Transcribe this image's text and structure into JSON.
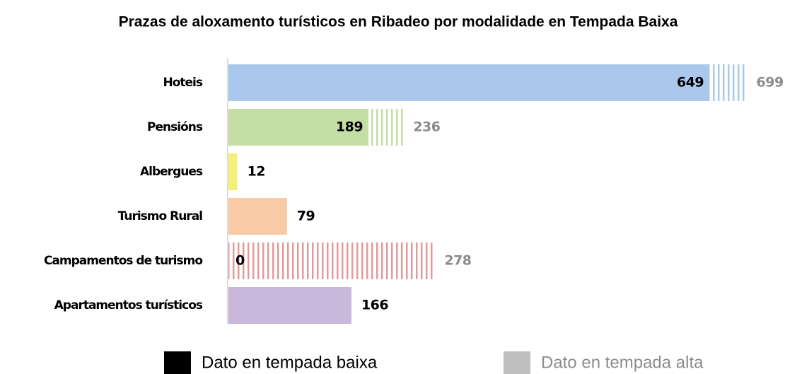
{
  "chart_data": {
    "type": "bar",
    "orientation": "horizontal",
    "title": "Prazas de aloxamento turísticos en Ribadeo por modalidade en Tempada Baixa",
    "categories": [
      "Hoteis",
      "Pensións",
      "Albergues",
      "Turismo Rural",
      "Campamentos de turismo",
      "Apartamentos turísticos"
    ],
    "colors": [
      "#a9c8ec",
      "#c4dea6",
      "#f4ef78",
      "#f9caa4",
      "#e59a9a",
      "#c9b7dc"
    ],
    "series": [
      {
        "name": "Dato en tempada baixa",
        "color": "#000000",
        "values": [
          649,
          189,
          12,
          79,
          0,
          166
        ]
      },
      {
        "name": "Dato en tempada alta",
        "color": "#bfbfbf",
        "values": [
          699,
          236,
          null,
          null,
          278,
          null
        ]
      }
    ],
    "legend": "bottom"
  }
}
